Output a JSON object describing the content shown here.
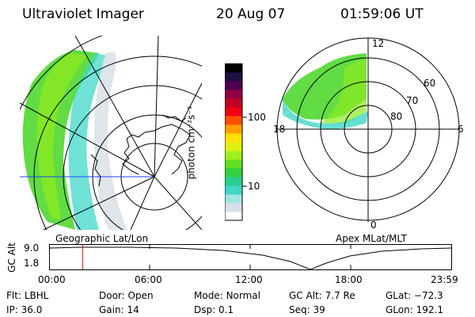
{
  "header": {
    "title": "Ultraviolet Imager",
    "date": "20 Aug 07",
    "time": "01:59:06 UT"
  },
  "geo_panel": {
    "label": "Geographic Lat/Lon"
  },
  "apex_panel": {
    "label": "Apex MLat/MLT",
    "mlt_labels": {
      "top": "12",
      "left": "18",
      "right": "6",
      "bottom": "0"
    },
    "lat_labels": [
      "60",
      "70",
      "80"
    ]
  },
  "colorbar": {
    "unit_label": "photon cm⁻²s⁻¹",
    "tick_labels": [
      "100",
      "10"
    ],
    "colors": [
      "#ffffff",
      "#d8e0e8",
      "#9fe6e0",
      "#40d8c8",
      "#28d090",
      "#30d040",
      "#60e020",
      "#a0f020",
      "#e0f010",
      "#ffe000",
      "#ffa000",
      "#ff5000",
      "#f00010",
      "#c00020",
      "#900040",
      "#500050",
      "#201040",
      "#000000"
    ]
  },
  "timeline": {
    "ylabel": "GC Alt",
    "yticks": [
      "9.0",
      "1.8"
    ],
    "xticks": [
      "00:00",
      "06:00",
      "12:00",
      "18:00",
      "23:59"
    ],
    "current_time_hours": 2.0,
    "cursor_color": "#ff0000"
  },
  "info": {
    "filter_label": "Flt:",
    "filter_value": "LBHL",
    "door_label": "Door:",
    "door_value": "Open",
    "mode_label": "Mode:",
    "mode_value": "Normal",
    "gcalt_label": "GC Alt:",
    "gcalt_value": "7.7 Re",
    "glat_label": "GLat:",
    "glat_value": "−72.3",
    "ip_label": "IP:",
    "ip_value": "36.0",
    "gain_label": "Gain:",
    "gain_value": "14",
    "dsp_label": "Dsp:",
    "dsp_value": "0.1",
    "seq_label": "Seq:",
    "seq_value": "39",
    "glon_label": "GLon:",
    "glon_value": "192.1"
  }
}
